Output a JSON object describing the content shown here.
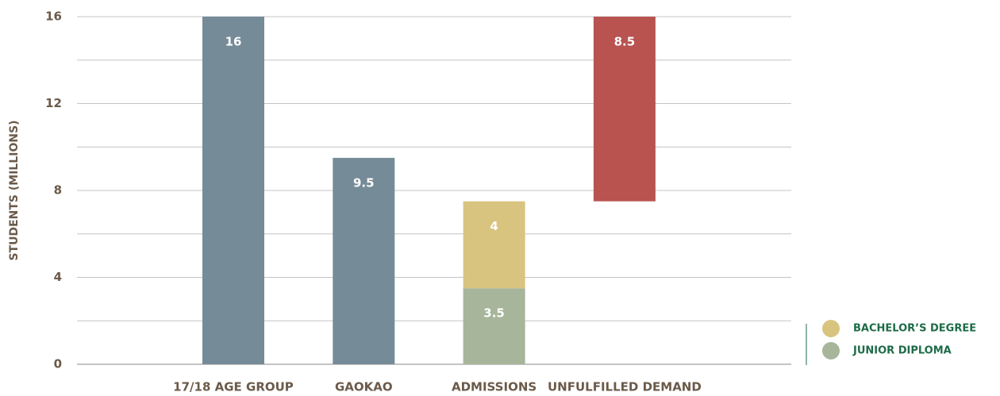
{
  "chart_data": {
    "type": "waterfall",
    "y_label": "STUDENTS (MILLIONS)",
    "categories": [
      "17/18 AGE GROUP",
      "GAOKAO",
      "ADMISSIONS",
      "UNFULFILLED DEMAND"
    ],
    "series": [
      {
        "color": "#768b98",
        "values": [
          16,
          9.5,
          null,
          null
        ]
      },
      {
        "name": "JUNIOR DIPLOMA",
        "color": "#a7b59a",
        "values": [
          null,
          null,
          3.5,
          null
        ]
      },
      {
        "name": "BACHELOR’S DEGREE",
        "color": "#d9c47f",
        "values": [
          null,
          null,
          4,
          null
        ]
      },
      {
        "color": "#b85350",
        "floating": true,
        "values": [
          null,
          null,
          null,
          8.5
        ]
      }
    ],
    "ylim": [
      0,
      16
    ],
    "yticks": [
      0,
      4,
      8,
      12,
      16
    ],
    "minor_yticks": [
      2,
      6,
      10,
      14
    ],
    "grid": true,
    "legend": "lower right"
  }
}
